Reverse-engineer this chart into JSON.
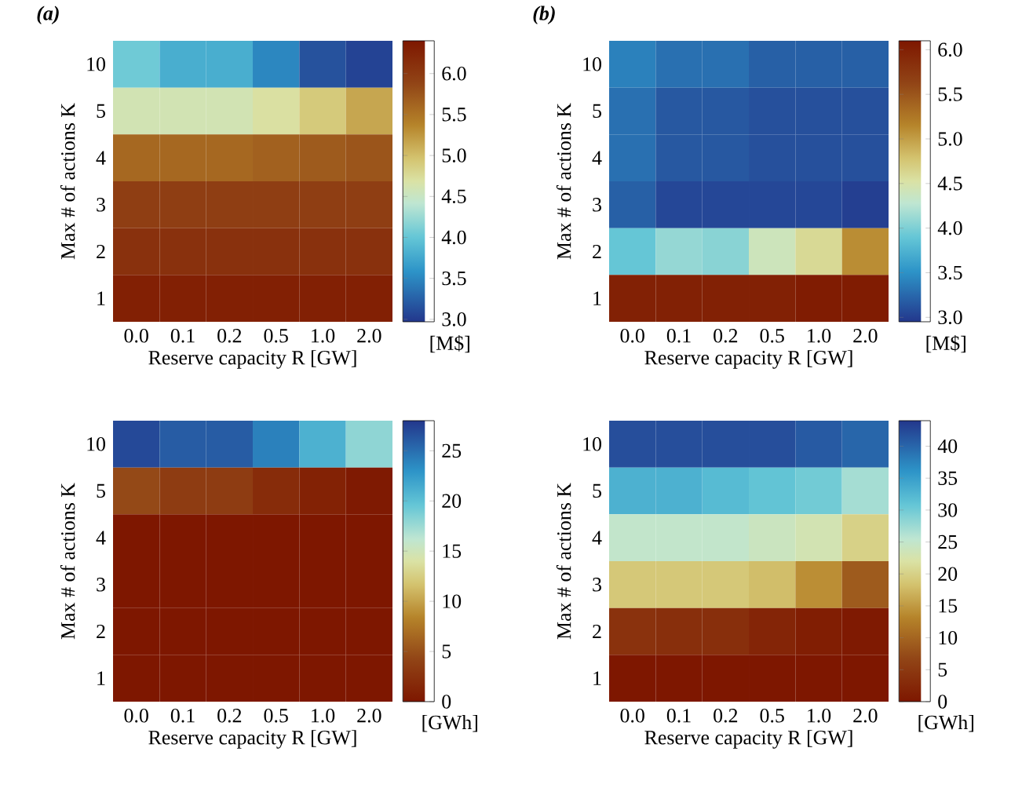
{
  "chart_data": [
    {
      "type": "heatmap",
      "title": "(a)",
      "xlabel": "Reserve capacity R [GW]",
      "ylabel": "Max # of actions K",
      "clabel": "[M$]",
      "categories": [
        "0.0",
        "0.1",
        "0.2",
        "0.5",
        "1.0",
        "2.0"
      ],
      "y_categories": [
        "10",
        "5",
        "4",
        "3",
        "2",
        "1"
      ],
      "cells": [
        [
          4.05,
          3.8,
          3.8,
          3.5,
          3.15,
          3.05
        ],
        [
          4.6,
          4.6,
          4.6,
          4.7,
          4.9,
          5.15
        ],
        [
          5.6,
          5.6,
          5.6,
          5.65,
          5.7,
          5.75
        ],
        [
          5.95,
          5.95,
          5.95,
          5.95,
          5.95,
          5.95
        ],
        [
          6.1,
          6.1,
          6.1,
          6.1,
          6.1,
          6.1
        ],
        [
          6.3,
          6.3,
          6.3,
          6.3,
          6.3,
          6.3
        ]
      ],
      "clim": [
        6.4,
        2.97
      ],
      "cticks": [
        {
          "value": 3.0,
          "label": "3.0"
        },
        3.5,
        {
          "value": 4.0,
          "label": "4.0"
        },
        4.5,
        {
          "value": 5.0,
          "label": "5.0"
        },
        5.5,
        {
          "value": 6.0,
          "label": "6.0"
        }
      ]
    },
    {
      "type": "heatmap",
      "title": "(b)",
      "xlabel": "Reserve capacity R [GW]",
      "ylabel": "Max # of actions K",
      "clabel": "[M$]",
      "categories": [
        "0.0",
        "0.1",
        "0.2",
        "0.5",
        "1.0",
        "2.0"
      ],
      "y_categories": [
        "10",
        "5",
        "4",
        "3",
        "2",
        "1"
      ],
      "cells": [
        [
          3.4,
          3.3,
          3.3,
          3.2,
          3.2,
          3.2
        ],
        [
          3.3,
          3.15,
          3.15,
          3.1,
          3.1,
          3.1
        ],
        [
          3.3,
          3.15,
          3.15,
          3.1,
          3.1,
          3.1
        ],
        [
          3.2,
          3.05,
          3.05,
          3.05,
          3.05,
          3.0
        ],
        [
          3.9,
          4.1,
          4.05,
          4.4,
          4.6,
          5.1
        ],
        [
          6.0,
          6.0,
          6.0,
          6.0,
          6.05,
          6.05
        ]
      ],
      "clim": [
        6.1,
        2.95
      ],
      "cticks": [
        {
          "value": 3.0,
          "label": "3.0"
        },
        3.5,
        {
          "value": 4.0,
          "label": "4.0"
        },
        4.5,
        {
          "value": 5.0,
          "label": "5.0"
        },
        5.5,
        {
          "value": 6.0,
          "label": "6.0"
        }
      ]
    },
    {
      "type": "heatmap",
      "xlabel": "Reserve capacity R [GW]",
      "ylabel": "Max # of actions K",
      "clabel": "[GWh]",
      "categories": [
        "0.0",
        "0.1",
        "0.2",
        "0.5",
        "1.0",
        "2.0"
      ],
      "y_categories": [
        "10",
        "5",
        "4",
        "3",
        "2",
        "1"
      ],
      "cells": [
        [
          27,
          26,
          26,
          24,
          21,
          18
        ],
        [
          4.5,
          3.5,
          3.5,
          2,
          1,
          0.3
        ],
        [
          0,
          0,
          0,
          0,
          0,
          0
        ],
        [
          0,
          0,
          0,
          0,
          0,
          0
        ],
        [
          0,
          0,
          0,
          0,
          0,
          0
        ],
        [
          0,
          0,
          0,
          0,
          0,
          0
        ]
      ],
      "clim": [
        0,
        28
      ],
      "cticks": [
        0,
        5,
        10,
        15,
        20,
        25
      ]
    },
    {
      "type": "heatmap",
      "xlabel": "Reserve capacity R [GW]",
      "ylabel": "Max # of actions K",
      "clabel": "[GWh]",
      "categories": [
        "0.0",
        "0.1",
        "0.2",
        "0.5",
        "1.0",
        "2.0"
      ],
      "y_categories": [
        "10",
        "5",
        "4",
        "3",
        "2",
        "1"
      ],
      "cells": [
        [
          42,
          42,
          42,
          42,
          41,
          40
        ],
        [
          33,
          33,
          32,
          31,
          30,
          27
        ],
        [
          25,
          25,
          25,
          24,
          23,
          20
        ],
        [
          19,
          19,
          19,
          18,
          14,
          9
        ],
        [
          4,
          3.5,
          3.5,
          2,
          1,
          0.5
        ],
        [
          0,
          0,
          0,
          0,
          0,
          0
        ]
      ],
      "clim": [
        0,
        44
      ],
      "cticks": [
        0,
        5,
        10,
        15,
        20,
        25,
        30,
        35,
        40
      ]
    }
  ]
}
